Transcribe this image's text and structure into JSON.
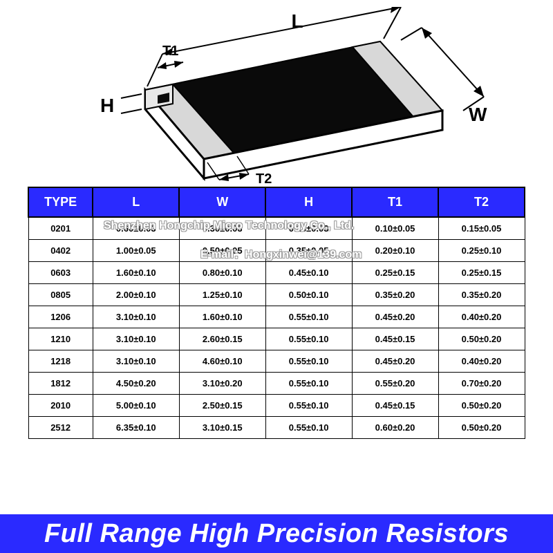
{
  "diagram": {
    "labels": {
      "L": "L",
      "W": "W",
      "H": "H",
      "T1": "T1",
      "T2": "T2"
    },
    "body_color": "#0a0a0a",
    "side_color": "#ffffff",
    "outline_color": "#000000",
    "terminal_color": "#d8d8d8"
  },
  "table": {
    "header_bg": "#2a2aff",
    "header_fg": "#ffffff",
    "border_color": "#000000",
    "columns": [
      "TYPE",
      "L",
      "W",
      "H",
      "T1",
      "T2"
    ],
    "col_widths_pct": [
      13,
      17.4,
      17.4,
      17.4,
      17.4,
      17.4
    ],
    "header_fontsize": 18,
    "cell_fontsize": 13,
    "rows": [
      [
        "0201",
        "0.60±0.03",
        "0.30±0.03",
        "0.23±0.03",
        "0.10±0.05",
        "0.15±0.05"
      ],
      [
        "0402",
        "1.00±0.05",
        "0.50±0.05",
        "0.35±0.05",
        "0.20±0.10",
        "0.25±0.10"
      ],
      [
        "0603",
        "1.60±0.10",
        "0.80±0.10",
        "0.45±0.10",
        "0.25±0.15",
        "0.25±0.15"
      ],
      [
        "0805",
        "2.00±0.10",
        "1.25±0.10",
        "0.50±0.10",
        "0.35±0.20",
        "0.35±0.20"
      ],
      [
        "1206",
        "3.10±0.10",
        "1.60±0.10",
        "0.55±0.10",
        "0.45±0.20",
        "0.40±0.20"
      ],
      [
        "1210",
        "3.10±0.10",
        "2.60±0.15",
        "0.55±0.10",
        "0.45±0.15",
        "0.50±0.20"
      ],
      [
        "1218",
        "3.10±0.10",
        "4.60±0.10",
        "0.55±0.10",
        "0.45±0.20",
        "0.40±0.20"
      ],
      [
        "1812",
        "4.50±0.20",
        "3.10±0.20",
        "0.55±0.10",
        "0.55±0.20",
        "0.70±0.20"
      ],
      [
        "2010",
        "5.00±0.10",
        "2.50±0.15",
        "0.55±0.10",
        "0.45±0.15",
        "0.50±0.20"
      ],
      [
        "2512",
        "6.35±0.10",
        "3.10±0.15",
        "0.55±0.10",
        "0.60±0.20",
        "0.50±0.20"
      ]
    ]
  },
  "watermarks": {
    "line1": "Shenzhen Hongchip Micro Technology Co., Ltd.",
    "line2": "E-mail：Hongxinwei@139.com"
  },
  "footer": {
    "text": "Full Range High Precision Resistors",
    "bg": "#2a2aff",
    "fg": "#ffffff",
    "fontsize": 38
  }
}
